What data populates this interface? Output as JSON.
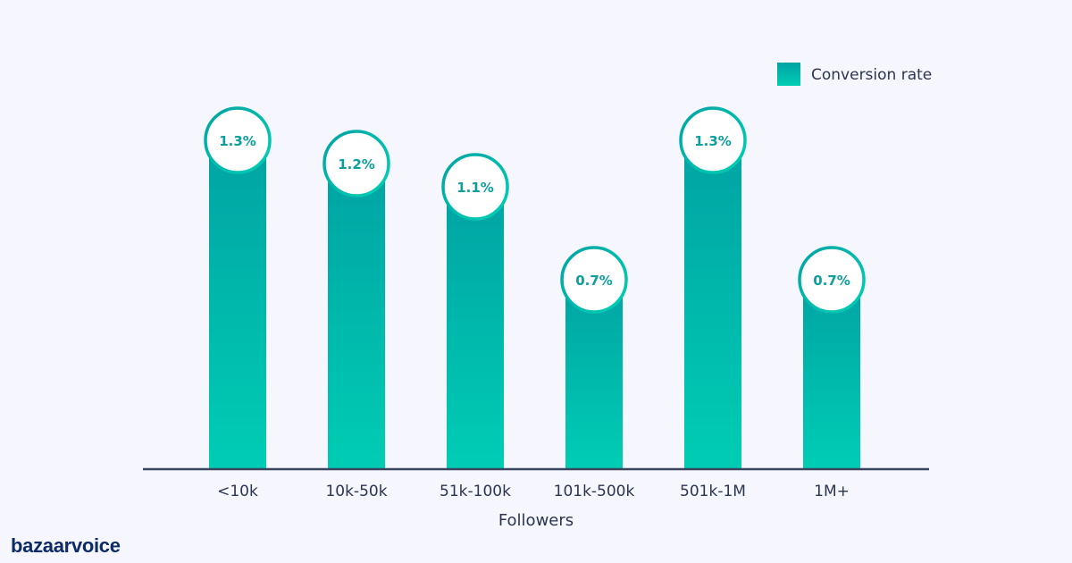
{
  "chart_data": {
    "type": "bar",
    "categories": [
      "<10k",
      "10k-50k",
      "51k-100k",
      "101k-500k",
      "501k-1M",
      "1M+"
    ],
    "series": [
      {
        "name": "Conversion rate",
        "values": [
          1.3,
          1.2,
          1.1,
          0.7,
          1.3,
          0.7
        ]
      }
    ],
    "data_labels": [
      "1.3%",
      "1.2%",
      "1.1%",
      "0.7%",
      "1.3%",
      "0.7%"
    ],
    "xlabel": "Followers",
    "ylabel": "",
    "ylim": [
      0,
      1.4
    ],
    "grid": false,
    "legend": {
      "position": "top-right",
      "label": "Conversion rate"
    },
    "colors": {
      "bar_top": "#00a3a3",
      "bar_bottom": "#00cdb4",
      "axis": "#3a4560",
      "label": "#0d9e9e",
      "text": "#2b3550"
    }
  },
  "brand": {
    "logo_text": "bazaarvoice"
  }
}
